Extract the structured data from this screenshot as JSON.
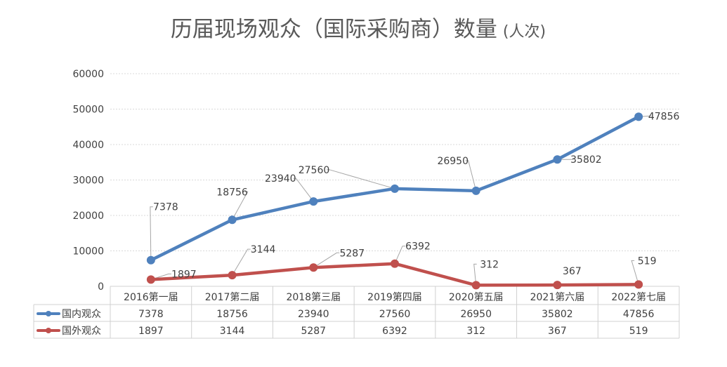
{
  "chart_data": {
    "type": "line",
    "title": "历届现场观众（国际采购商）数量",
    "title_unit": "(人次)",
    "categories": [
      "2016第一届",
      "2017第二届",
      "2018第三届",
      "2019第四届",
      "2020第五届",
      "2021第六届",
      "2022第七届"
    ],
    "series": [
      {
        "name": "国内观众",
        "color": "#4f81bd",
        "values": [
          7378,
          18756,
          23940,
          27560,
          26950,
          35802,
          47856
        ]
      },
      {
        "name": "国外观众",
        "color": "#c0504d",
        "values": [
          1897,
          3144,
          5287,
          6392,
          312,
          367,
          519
        ]
      }
    ],
    "yticks": [
      0,
      10000,
      20000,
      30000,
      40000,
      50000,
      60000
    ],
    "ylim": [
      0,
      60000
    ],
    "grid": true,
    "legend": "data-table-left"
  }
}
